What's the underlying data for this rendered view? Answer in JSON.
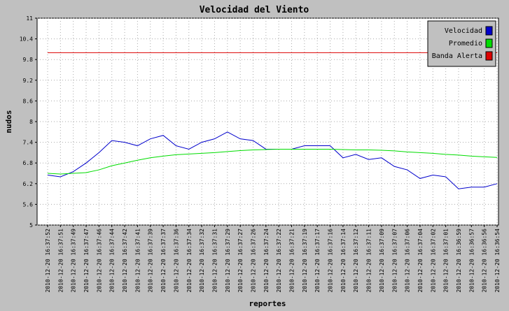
{
  "chart_data": {
    "type": "line",
    "title": "Velocidad del Viento",
    "x_label": "reportes",
    "y_label": "nudos",
    "categories": [
      "2010-12-20 16:37:52",
      "2010-12-20 16:37:51",
      "2010-12-20 16:37:49",
      "2010-12-20 16:37:47",
      "2010-12-20 16:37:46",
      "2010-12-20 16:37:44",
      "2010-12-20 16:37:42",
      "2010-12-20 16:37:41",
      "2010-12-20 16:37:39",
      "2010-12-20 16:37:37",
      "2010-12-20 16:37:36",
      "2010-12-20 16:37:34",
      "2010-12-20 16:37:32",
      "2010-12-20 16:37:31",
      "2010-12-20 16:37:29",
      "2010-12-20 16:37:27",
      "2010-12-20 16:37:26",
      "2010-12-20 16:37:24",
      "2010-12-20 16:37:22",
      "2010-12-20 16:37:21",
      "2010-12-20 16:37:19",
      "2010-12-20 16:37:17",
      "2010-12-20 16:37:16",
      "2010-12-20 16:37:14",
      "2010-12-20 16:37:12",
      "2010-12-20 16:37:11",
      "2010-12-20 16:37:09",
      "2010-12-20 16:37:07",
      "2010-12-20 16:37:06",
      "2010-12-20 16:37:04",
      "2010-12-20 16:37:02",
      "2010-12-20 16:37:01",
      "2010-12-20 16:36:59",
      "2010-12-20 16:36:57",
      "2010-12-20 16:36:56",
      "2010-12-20 16:36:54"
    ],
    "series": [
      {
        "name": "Velocidad",
        "color": "#0000cc",
        "values": [
          6.45,
          6.4,
          6.55,
          6.8,
          7.1,
          7.45,
          7.4,
          7.3,
          7.5,
          7.6,
          7.3,
          7.2,
          7.4,
          7.5,
          7.7,
          7.5,
          7.45,
          7.2,
          7.2,
          7.2,
          7.3,
          7.3,
          7.3,
          6.95,
          7.05,
          6.9,
          6.95,
          6.7,
          6.6,
          6.35,
          6.45,
          6.4,
          6.05,
          6.1,
          6.1,
          6.2
        ]
      },
      {
        "name": "Promedio",
        "color": "#00dd00",
        "values": [
          6.5,
          6.48,
          6.5,
          6.52,
          6.6,
          6.72,
          6.8,
          6.88,
          6.95,
          7.0,
          7.04,
          7.06,
          7.08,
          7.1,
          7.13,
          7.16,
          7.18,
          7.19,
          7.2,
          7.2,
          7.2,
          7.2,
          7.2,
          7.19,
          7.18,
          7.18,
          7.17,
          7.15,
          7.12,
          7.1,
          7.08,
          7.05,
          7.03,
          7.0,
          6.98,
          6.96
        ]
      },
      {
        "name": "Banda Alerta",
        "color": "#dd0000",
        "values": [
          10,
          10,
          10,
          10,
          10,
          10,
          10,
          10,
          10,
          10,
          10,
          10,
          10,
          10,
          10,
          10,
          10,
          10,
          10,
          10,
          10,
          10,
          10,
          10,
          10,
          10,
          10,
          10,
          10,
          10,
          10,
          10,
          10,
          10,
          10,
          10
        ]
      }
    ],
    "ylim": [
      5,
      11
    ],
    "yticks": [
      5,
      5.6,
      6.2,
      6.8,
      7.4,
      8,
      8.6,
      9.2,
      9.8,
      10.4,
      11
    ],
    "grid": true,
    "legend": "top-right"
  }
}
